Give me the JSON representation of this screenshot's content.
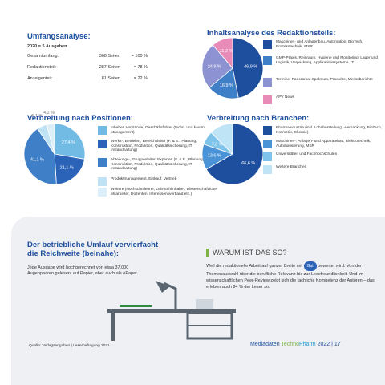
{
  "umfang": {
    "title": "Umfangsanalyse:",
    "subtitle": "2020 = 5 Ausgaben",
    "rows": [
      [
        "Gesamtumfang:",
        "368 Seiten",
        "= 100 %"
      ],
      [
        "Redaktionsteil:",
        "287 Seiten",
        "= 78 %"
      ],
      [
        "Anzeigenteil:",
        "81 Seiten",
        "= 22 %"
      ]
    ]
  },
  "charts": [
    {
      "type": "pie",
      "title": "Inhaltsanalyse des Redaktionsteils:",
      "values": [
        46.9,
        16.9,
        24.9,
        11.2
      ],
      "value_labels": [
        "46,9 %",
        "16,9 %",
        "24,9 %",
        "11,2 %"
      ],
      "colors": [
        "#1e4f9e",
        "#3f7fc8",
        "#8d92d2",
        "#e98bb8"
      ],
      "labels": [
        "Maschinen- und Anlagenbau, Automation, BioTech, Prozesstechnik, MSR",
        "GMP-Praxis, Reinraum, Hygiene und Monitoring, Lager und Logistik, Verpackung, Applikationssysteme, IT",
        "Termine, Panorama, Spektrum, Produkte, Messeberichte",
        "APV News"
      ]
    },
    {
      "type": "pie",
      "title": "Verbreitung nach Positionen:",
      "values": [
        27.4,
        21.1,
        41.1,
        5.1,
        4.2
      ],
      "value_labels": [
        "27,4 %",
        "21,1 %",
        "41,1 %",
        "5,1 %",
        "4,2 %"
      ],
      "colors": [
        "#72bbe4",
        "#2b63b8",
        "#3f7fc8",
        "#bfe3f5",
        "#dceff9"
      ],
      "labels": [
        "Inhaber, Vorstände, Geschäftsführer (techn. und kaufm. Management)",
        "Werks-, Betriebs-, Bereichsleiter (F. & E., Planung, Konstruktion, Produktion, Qualitätssicherung, IT, Instandhaltung)",
        "Abteilungs-, Gruppenleiter, Experten (F. & E., Planung, Konstruktion, Produktion, Qualitätssicherung, IT, Instandhaltung)",
        "Produktmanagement, Einkauf, Vertrieb",
        "Weitere (Hochschullehrer, Lehrstuhlinhaber, wissenschaftliche Mitarbeiter, Dozenten, Interessensverband etc.)"
      ]
    },
    {
      "type": "pie",
      "title": "Verbreitung nach Branchen:",
      "values": [
        66.6,
        13.6,
        7.3,
        12.5
      ],
      "value_labels": [
        "66,6 %",
        "13,6 %",
        "7,3 %",
        null
      ],
      "colors": [
        "#1e4f9e",
        "#4a93d6",
        "#7ec3ea",
        "#bfe4f6"
      ],
      "labels": [
        "Pharmaindustrie (inkl. Lohnherstellung, -verpackung, BioTech, Kosmetik, Chemie)",
        "Maschinen-, Anlagen- und Apparatebau, Elektrotechnik, Automatisierung, MSR",
        "Universitäten und Fachhochschulen",
        "Weitere Branchen"
      ]
    }
  ],
  "umlauf": {
    "title_line1": "Der betriebliche Umlauf vervierfacht",
    "title_line2": "die Reichweite (beinahe):",
    "text": "Jede Ausgabe wird hochgerechnet von etwa 37.000 Augenpaaren gelesen, auf Papier, aber auch als ePaper."
  },
  "warum": {
    "title": "WARUM IST DAS SO?",
    "text_before": "Weil die redaktionelle Arbeit auf ganzer Breite mit",
    "badge": "Gut",
    "text_after": "bewertet wird. Von der Themenauswahl über die berufliche Relevanz bis zur Lesefreundlichkeit. Und im wissenschaftlichen Peer-Review zeigt sich die fachliche Kompetenz der Autoren – das erleben auch 84 % der Leser so."
  },
  "footer": {
    "source": "Quelle: Verlagsangaben | Leserbefragung 2021",
    "prefix": "Mediadaten",
    "brand1": "Techno",
    "brand2": "Pharm",
    "year": "2022",
    "page": "17"
  }
}
